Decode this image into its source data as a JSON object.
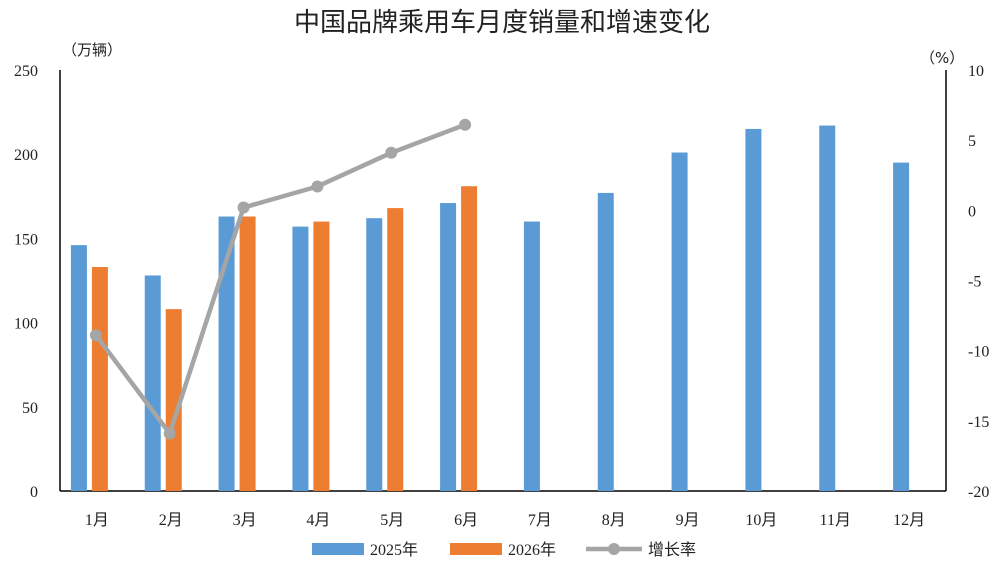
{
  "chart_data": {
    "type": "bar",
    "title": "中国品牌乘用车月度销量和增速变化",
    "categories": [
      "1月",
      "2月",
      "3月",
      "4月",
      "5月",
      "6月",
      "7月",
      "8月",
      "9月",
      "10月",
      "11月",
      "12月"
    ],
    "y_left_unit": "（万辆）",
    "y_right_unit": "（%）",
    "ylim_left": [
      0,
      250
    ],
    "ylim_right": [
      -20,
      10
    ],
    "yticks_left": [
      0,
      50,
      100,
      150,
      200,
      250
    ],
    "yticks_right": [
      -20,
      -15,
      -10,
      -5,
      0,
      5,
      10
    ],
    "series": [
      {
        "name": "2025年",
        "type": "bar",
        "axis": "left",
        "color": "#5B9BD5",
        "values": [
          146,
          128,
          163,
          157,
          162,
          171,
          160,
          177,
          201,
          215,
          217,
          195
        ]
      },
      {
        "name": "2026年",
        "type": "bar",
        "axis": "left",
        "color": "#ED7D31",
        "values": [
          133,
          108,
          163,
          160,
          168,
          181,
          null,
          null,
          null,
          null,
          null,
          null
        ]
      },
      {
        "name": "增长率",
        "type": "line",
        "axis": "right",
        "color": "#A5A5A5",
        "values": [
          -8.9,
          -15.9,
          0.2,
          1.7,
          4.1,
          6.1,
          null,
          null,
          null,
          null,
          null,
          null
        ]
      }
    ],
    "negative_tick_color": "#FF0000",
    "legend_position": "bottom",
    "grid": false
  }
}
